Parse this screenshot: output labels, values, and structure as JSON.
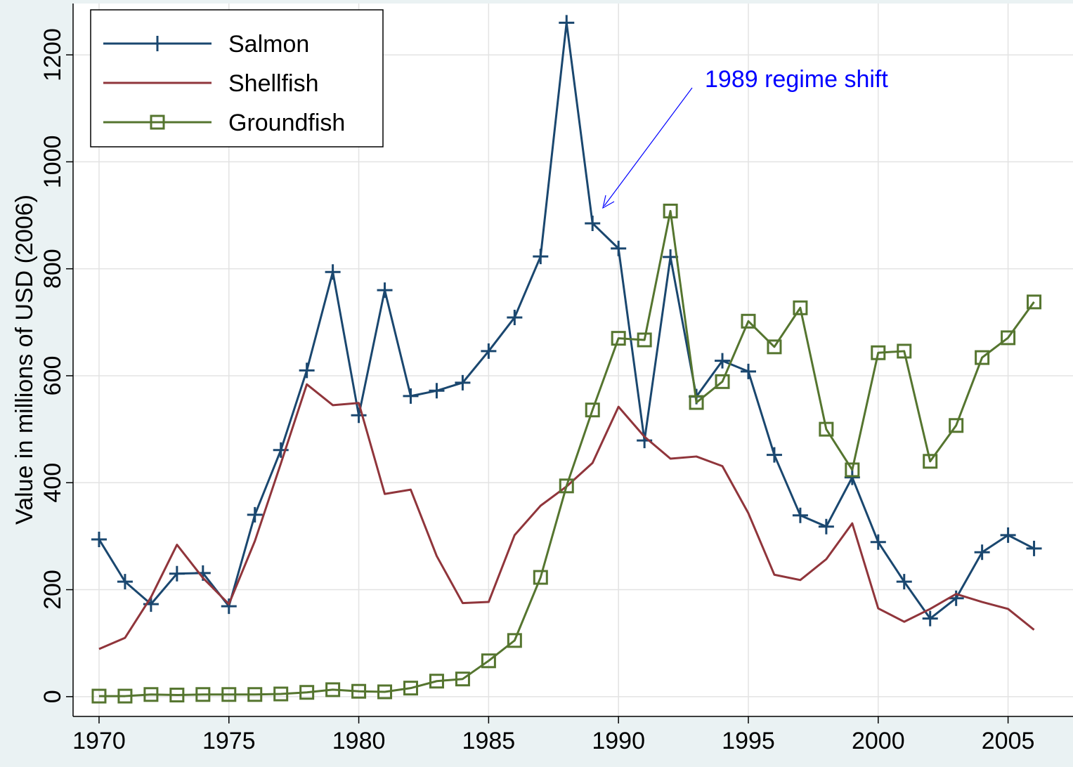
{
  "chart_data": {
    "type": "line",
    "y_label": "Value in millions of USD  (2006)",
    "annotation": "1989 regime shift",
    "x": [
      1970,
      1971,
      1972,
      1973,
      1974,
      1975,
      1976,
      1977,
      1978,
      1979,
      1980,
      1981,
      1982,
      1983,
      1984,
      1985,
      1986,
      1987,
      1988,
      1989,
      1990,
      1991,
      1992,
      1993,
      1994,
      1995,
      1996,
      1997,
      1998,
      1999,
      2000,
      2001,
      2002,
      2003,
      2004,
      2005,
      2006
    ],
    "series": [
      {
        "name": "Salmon",
        "color": "#1a476f",
        "marker": "plus",
        "values": [
          294,
          215,
          173,
          230,
          231,
          169,
          340,
          461,
          610,
          794,
          526,
          760,
          562,
          572,
          587,
          646,
          709,
          823,
          1260,
          885,
          838,
          479,
          822,
          561,
          628,
          608,
          452,
          339,
          318,
          410,
          289,
          215,
          146,
          184,
          270,
          302,
          277
        ]
      },
      {
        "name": "Shellfish",
        "color": "#90353b",
        "values": [
          89,
          110,
          186,
          284,
          222,
          173,
          291,
          436,
          584,
          545,
          549,
          379,
          387,
          263,
          175,
          177,
          302,
          357,
          393,
          437,
          542,
          486,
          445,
          449,
          431,
          343,
          228,
          218,
          257,
          324,
          165,
          140,
          164,
          192,
          177,
          164,
          125
        ]
      },
      {
        "name": "Groundfish",
        "color": "#55752f",
        "marker": "square",
        "values": [
          1,
          1,
          4,
          3,
          4,
          4,
          4,
          5,
          8,
          13,
          10,
          9,
          16,
          29,
          33,
          67,
          105,
          223,
          394,
          536,
          670,
          667,
          908,
          550,
          589,
          702,
          654,
          727,
          500,
          424,
          643,
          646,
          440,
          507,
          634,
          671,
          738
        ]
      }
    ],
    "xlim": [
      1969,
      2007.5
    ],
    "ylim": [
      -37,
      1296
    ],
    "xticks": [
      1970,
      1975,
      1980,
      1985,
      1990,
      1995,
      2000,
      2005
    ],
    "yticks": [
      0,
      200,
      400,
      600,
      800,
      1000,
      1200
    ],
    "grid": true,
    "legend": "top-left"
  }
}
